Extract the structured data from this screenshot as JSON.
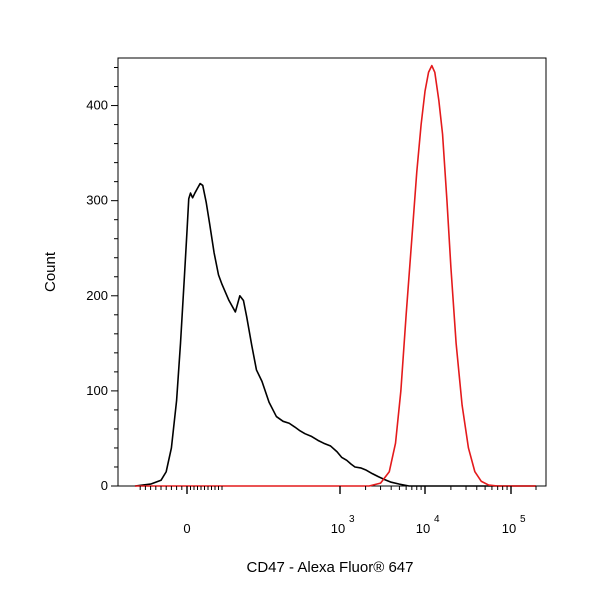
{
  "chart_data": {
    "type": "line",
    "xlabel": "CD47 - Alexa Fluor® 647",
    "ylabel": "Count",
    "xscale": "biexponential",
    "xlim": [
      -200,
      200000
    ],
    "ylim": [
      0,
      450
    ],
    "grid": false,
    "x_tick_labels": [
      {
        "value": 0,
        "base": "0",
        "exp": ""
      },
      {
        "value": 1000,
        "base": "10",
        "exp": "3"
      },
      {
        "value": 10000,
        "base": "10",
        "exp": "4"
      },
      {
        "value": 100000,
        "base": "10",
        "exp": "5"
      }
    ],
    "y_ticks": [
      0,
      100,
      200,
      300,
      400
    ],
    "y_tick_labels": [
      "0",
      "100",
      "200",
      "300",
      "400"
    ],
    "series": [
      {
        "color": "#000000",
        "points": [
          [
            -200,
            0
          ],
          [
            -140,
            2
          ],
          [
            -100,
            6
          ],
          [
            -80,
            15
          ],
          [
            -60,
            40
          ],
          [
            -40,
            90
          ],
          [
            -25,
            150
          ],
          [
            -10,
            220
          ],
          [
            0,
            268
          ],
          [
            10,
            302
          ],
          [
            20,
            308
          ],
          [
            32,
            303
          ],
          [
            45,
            308
          ],
          [
            60,
            313
          ],
          [
            75,
            318
          ],
          [
            90,
            316
          ],
          [
            110,
            298
          ],
          [
            130,
            275
          ],
          [
            155,
            245
          ],
          [
            180,
            222
          ],
          [
            200,
            212
          ],
          [
            220,
            195
          ],
          [
            240,
            183
          ],
          [
            255,
            200
          ],
          [
            268,
            195
          ],
          [
            280,
            178
          ],
          [
            300,
            148
          ],
          [
            320,
            122
          ],
          [
            345,
            110
          ],
          [
            380,
            88
          ],
          [
            420,
            73
          ],
          [
            460,
            68
          ],
          [
            500,
            66
          ],
          [
            540,
            62
          ],
          [
            580,
            58
          ],
          [
            620,
            55
          ],
          [
            680,
            52
          ],
          [
            740,
            48
          ],
          [
            800,
            45
          ],
          [
            880,
            42
          ],
          [
            960,
            36
          ],
          [
            1050,
            30
          ],
          [
            1200,
            27
          ],
          [
            1350,
            23
          ],
          [
            1500,
            20
          ],
          [
            1750,
            19
          ],
          [
            2000,
            17
          ],
          [
            2400,
            13
          ],
          [
            2800,
            10
          ],
          [
            3300,
            7
          ],
          [
            4000,
            4
          ],
          [
            5000,
            2
          ],
          [
            6500,
            0
          ],
          [
            200000,
            0
          ]
        ]
      },
      {
        "color": "#e41a1c",
        "points": [
          [
            -200,
            0
          ],
          [
            2200,
            0
          ],
          [
            3000,
            3
          ],
          [
            3800,
            15
          ],
          [
            4500,
            45
          ],
          [
            5200,
            100
          ],
          [
            6000,
            180
          ],
          [
            7000,
            260
          ],
          [
            8000,
            330
          ],
          [
            9000,
            380
          ],
          [
            10000,
            415
          ],
          [
            11000,
            435
          ],
          [
            12000,
            442
          ],
          [
            13000,
            435
          ],
          [
            14500,
            405
          ],
          [
            16000,
            370
          ],
          [
            18000,
            300
          ],
          [
            20000,
            230
          ],
          [
            23000,
            150
          ],
          [
            27000,
            85
          ],
          [
            32000,
            40
          ],
          [
            38000,
            15
          ],
          [
            45000,
            5
          ],
          [
            55000,
            1
          ],
          [
            70000,
            0
          ],
          [
            200000,
            0
          ]
        ]
      }
    ]
  }
}
